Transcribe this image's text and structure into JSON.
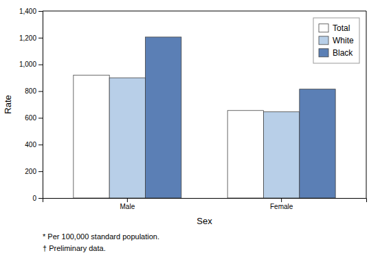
{
  "chart_data": {
    "type": "bar",
    "categories": [
      "Male",
      "Female"
    ],
    "series": [
      {
        "name": "Total",
        "color": "#ffffff",
        "values": [
          920,
          655
        ]
      },
      {
        "name": "White",
        "color": "#b8cfe8",
        "values": [
          900,
          645
        ]
      },
      {
        "name": "Black",
        "color": "#5b7fb5",
        "values": [
          1205,
          815
        ]
      }
    ],
    "xlabel": "Sex",
    "ylabel": "Rate",
    "ylim": [
      0,
      1400
    ],
    "yticks": [
      0,
      200,
      400,
      600,
      800,
      {
        "value": 1000,
        "label": "1,000"
      },
      {
        "value": 1200,
        "label": "1,200"
      },
      {
        "value": 1400,
        "label": "1,400"
      }
    ],
    "legend": "upper right",
    "grid": false,
    "annotations": [
      "* Per 100,000 standard population.",
      "† Preliminary data."
    ]
  }
}
